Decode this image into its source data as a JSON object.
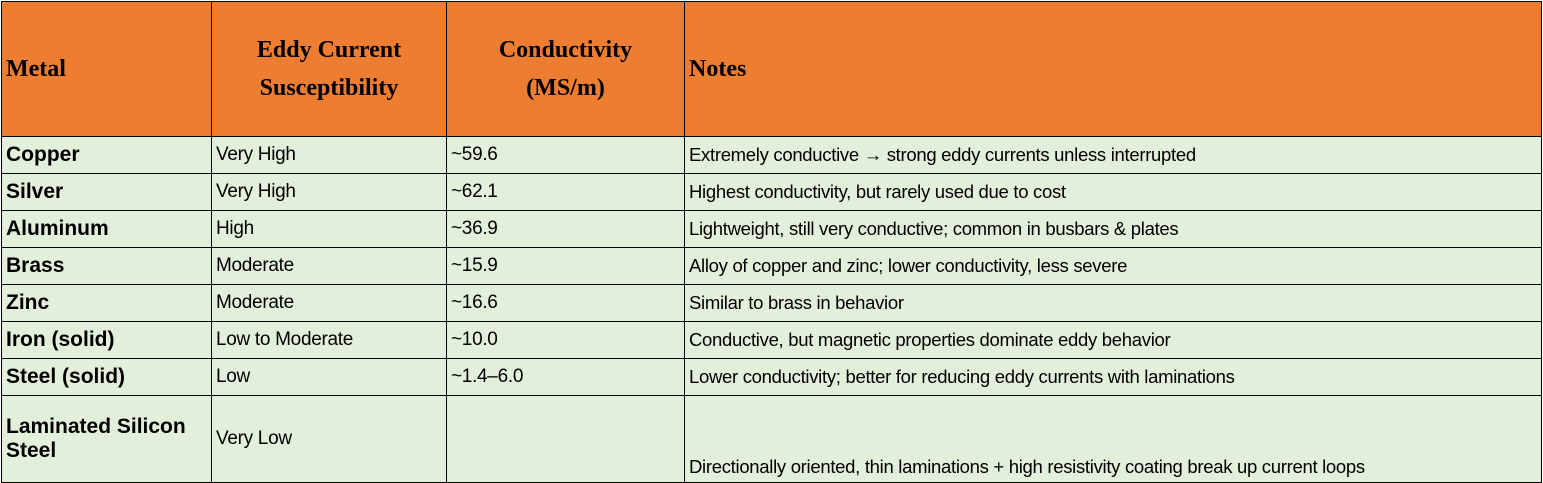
{
  "table": {
    "headers": [
      "Metal",
      "Eddy Current Susceptibility",
      "Conductivity (MS/m)",
      "Notes"
    ],
    "rows": [
      [
        "Copper",
        "Very High",
        "~59.6",
        "Extremely conductive → strong eddy currents unless interrupted"
      ],
      [
        "Silver",
        "Very High",
        "~62.1",
        "Highest conductivity, but rarely used due to cost"
      ],
      [
        "Aluminum",
        "High",
        "~36.9",
        "Lightweight, still very conductive; common in busbars & plates"
      ],
      [
        "Brass",
        "Moderate",
        "~15.9",
        "Alloy of copper and zinc; lower conductivity, less severe"
      ],
      [
        "Zinc",
        "Moderate",
        "~16.6",
        "Similar to brass in behavior"
      ],
      [
        "Iron (solid)",
        "Low to Moderate",
        "~10.0",
        "Conductive, but magnetic properties dominate eddy behavior"
      ],
      [
        "Steel (solid)",
        "Low",
        "~1.4–6.0",
        "Lower conductivity; better for reducing eddy currents with laminations"
      ],
      [
        "Laminated Silicon Steel",
        "Very Low",
        "",
        "Directionally oriented, thin laminations + high resistivity coating break up current loops"
      ]
    ]
  }
}
